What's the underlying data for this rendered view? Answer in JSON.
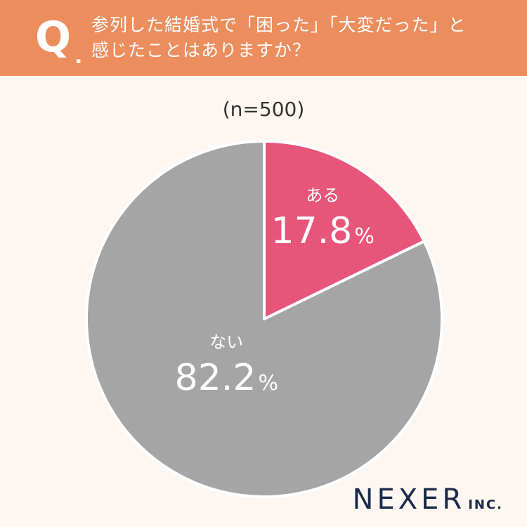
{
  "header": {
    "q_letter": "Q",
    "q_dot": ".",
    "line1": "参列した結婚式で「困った」「大変だった」と",
    "line2": "感じたことはありますか？",
    "background_color": "#ec8d5e"
  },
  "sample_size": "(n=500)",
  "brand": {
    "name": "NEXER",
    "suffix": "INC."
  },
  "chart_data": {
    "type": "pie",
    "title": "",
    "start_angle_deg": 0,
    "direction": "clockwise",
    "slices": [
      {
        "label": "ある",
        "value": 17.8,
        "value_text": "17.8",
        "unit": "%",
        "color": "#e8557a"
      },
      {
        "label": "ない",
        "value": 82.2,
        "value_text": "82.2",
        "unit": "%",
        "color": "#a5a5a5"
      }
    ],
    "slice_border_color": "#ffffff"
  }
}
